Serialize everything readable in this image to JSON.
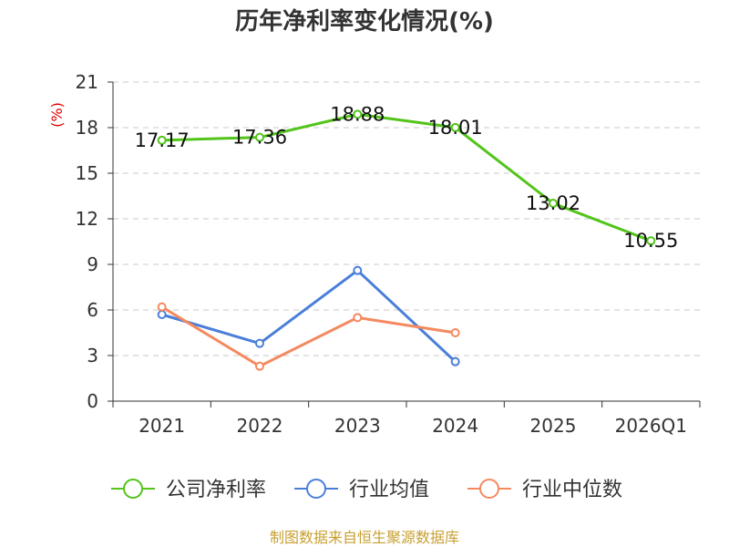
{
  "chart_data": {
    "type": "line",
    "title": "历年净利率变化情况(%)",
    "ylabel": "(%)",
    "xlabel": "",
    "categories": [
      "2021",
      "2022",
      "2023",
      "2024",
      "2025",
      "2026Q1"
    ],
    "ylim": [
      0,
      21
    ],
    "yticks": [
      0,
      3,
      6,
      9,
      12,
      15,
      18,
      21
    ],
    "grid": true,
    "legend_position": "bottom",
    "series": [
      {
        "name": "公司净利率",
        "color": "#52c41a",
        "values": [
          17.17,
          17.36,
          18.88,
          18.01,
          13.02,
          10.55
        ],
        "labels": [
          "17.17",
          "17.36",
          "18.88",
          "18.01",
          "13.02",
          "10.55"
        ],
        "show_labels": true
      },
      {
        "name": "行业均值",
        "color": "#4a7fd9",
        "values": [
          5.7,
          3.8,
          8.6,
          2.6,
          null,
          null
        ],
        "show_labels": false
      },
      {
        "name": "行业中位数",
        "color": "#f4895f",
        "values": [
          6.2,
          2.3,
          5.5,
          4.5,
          null,
          null
        ],
        "show_labels": false
      }
    ],
    "source": "制图数据来自恒生聚源数据库"
  }
}
